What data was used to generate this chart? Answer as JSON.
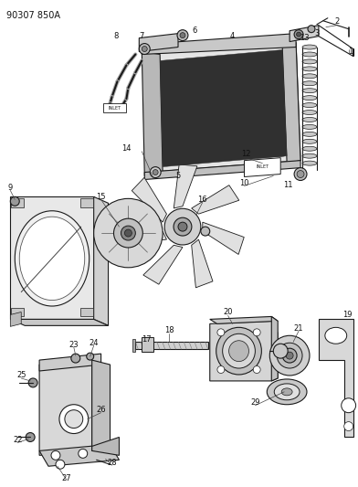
{
  "title": "90307 850A",
  "bg_color": "#ffffff",
  "lc": "#1a1a1a",
  "figsize": [
    3.92,
    5.33
  ],
  "dpi": 100
}
